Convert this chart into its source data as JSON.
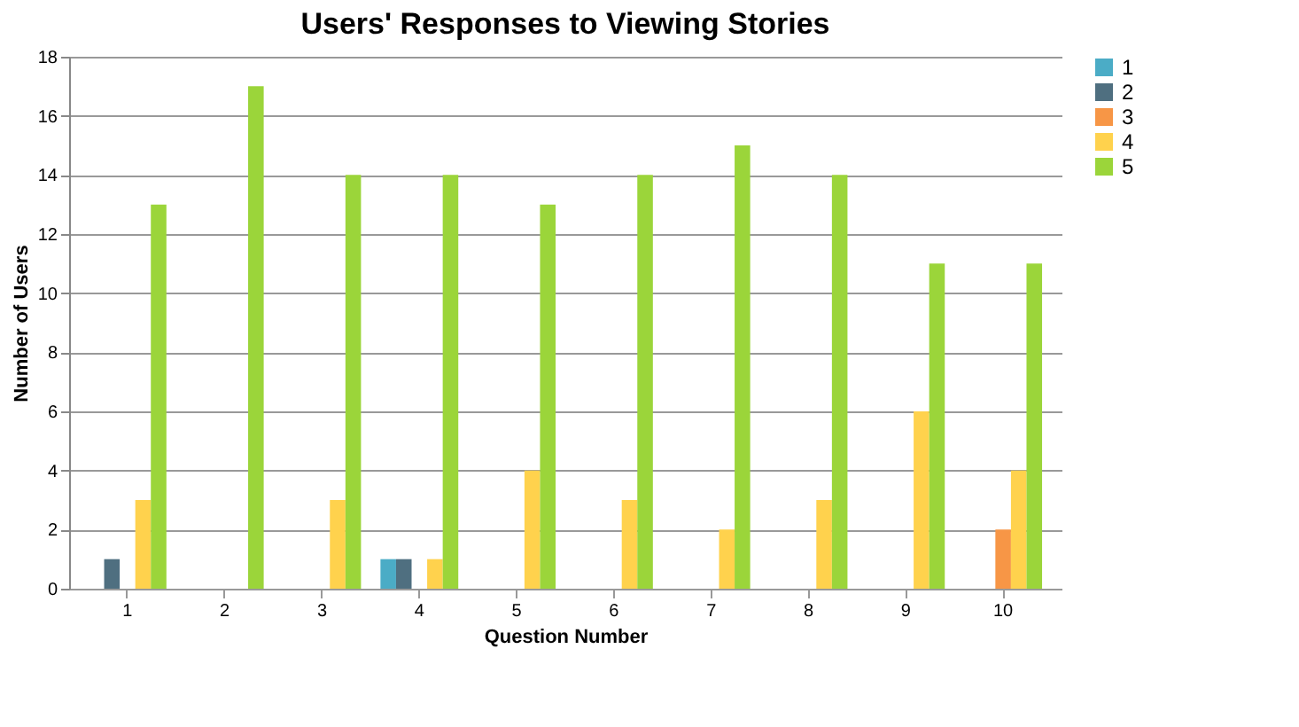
{
  "chart_data": {
    "type": "bar",
    "title": "Users' Responses to Viewing Stories",
    "xlabel": "Question Number",
    "ylabel": "Number of Users",
    "categories": [
      "1",
      "2",
      "3",
      "4",
      "5",
      "6",
      "7",
      "8",
      "9",
      "10"
    ],
    "series": [
      {
        "name": "1",
        "color": "#4bacc6",
        "values": [
          0,
          0,
          0,
          1,
          0,
          0,
          0,
          0,
          0,
          0
        ]
      },
      {
        "name": "2",
        "color": "#4f6f80",
        "values": [
          1,
          0,
          0,
          1,
          0,
          0,
          0,
          0,
          0,
          0
        ]
      },
      {
        "name": "3",
        "color": "#f79646",
        "values": [
          0,
          0,
          0,
          0,
          0,
          0,
          0,
          0,
          0,
          2
        ]
      },
      {
        "name": "4",
        "color": "#ffd24d",
        "values": [
          3,
          0,
          3,
          1,
          4,
          3,
          2,
          3,
          6,
          4
        ]
      },
      {
        "name": "5",
        "color": "#9bd53a",
        "values": [
          13,
          17,
          14,
          14,
          13,
          14,
          15,
          14,
          11,
          11
        ]
      }
    ],
    "ylim": [
      0,
      18
    ],
    "yticks": [
      0,
      2,
      4,
      6,
      8,
      10,
      12,
      14,
      16,
      18
    ],
    "grid": "y",
    "legend": "right"
  }
}
